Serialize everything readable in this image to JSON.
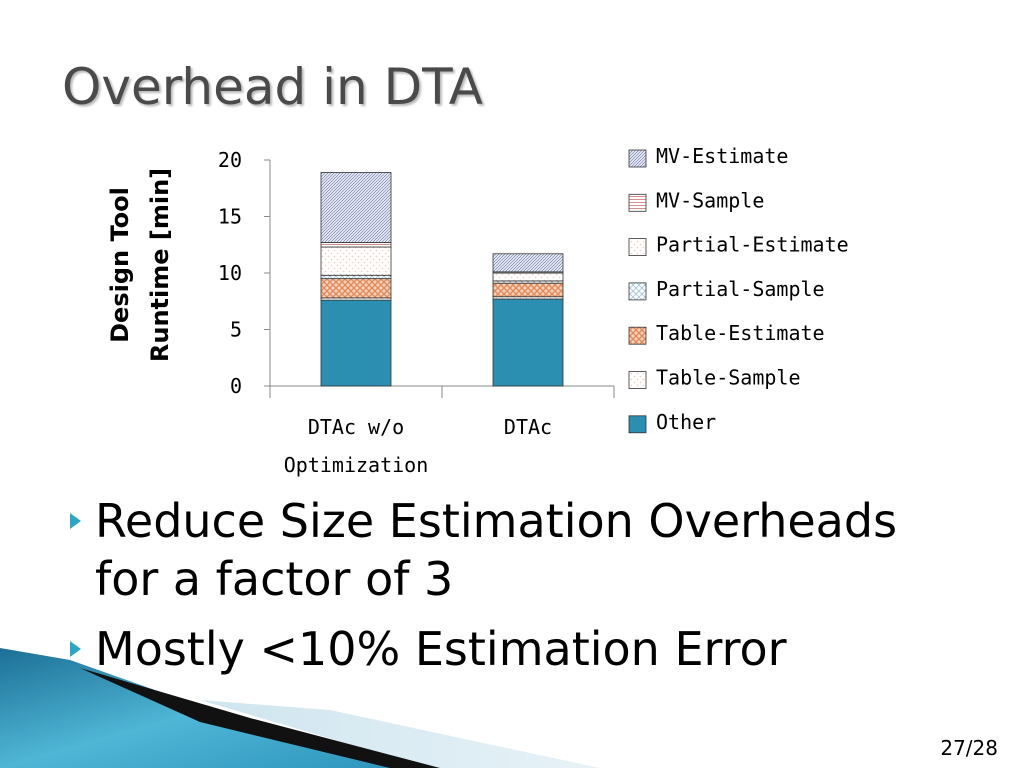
{
  "slide": {
    "title": "Overhead in DTA",
    "bullets": [
      "Reduce Size Estimation Overheads for a factor of 3",
      "Mostly <10% Estimation Error"
    ],
    "page_number": "27/28"
  },
  "colors": {
    "accent": "#2a8fb0",
    "title": "#4a4a4a",
    "bullet_marker": "#2aa7c8"
  },
  "chart_data": {
    "type": "bar",
    "stacked": true,
    "ylabel": "Design Tool Runtime [min]",
    "ylabel_lines": [
      "Design Tool",
      "Runtime [min]"
    ],
    "xlabel": "",
    "ylim": [
      0,
      20
    ],
    "yticks": [
      0,
      5,
      10,
      15,
      20
    ],
    "categories": [
      "DTAc w/o Optimization",
      "DTAc"
    ],
    "category_lines": [
      [
        "DTAc w/o",
        "Optimization"
      ],
      [
        "DTAc"
      ]
    ],
    "legend_position": "right",
    "grid": false,
    "series": [
      {
        "name": "Other",
        "values": [
          7.6,
          7.7
        ],
        "fill": "#2a8fb0",
        "pattern": "solid"
      },
      {
        "name": "Table-Sample",
        "values": [
          0.2,
          0.2
        ],
        "fill": "#f3c9b8",
        "pattern": "dots"
      },
      {
        "name": "Table-Estimate",
        "values": [
          1.7,
          1.2
        ],
        "fill": "#e38a5a",
        "pattern": "grid"
      },
      {
        "name": "Partial-Sample",
        "values": [
          0.3,
          0.2
        ],
        "fill": "#9ec3da",
        "pattern": "diag"
      },
      {
        "name": "Partial-Estimate",
        "values": [
          2.5,
          0.7
        ],
        "fill": "#f3c9b8",
        "pattern": "dots"
      },
      {
        "name": "MV-Sample",
        "values": [
          0.4,
          0.1
        ],
        "fill": "#c86a6a",
        "pattern": "hlines"
      },
      {
        "name": "MV-Estimate",
        "values": [
          6.2,
          1.6
        ],
        "fill": "#9aa4c8",
        "pattern": "cross"
      }
    ],
    "legend_order": [
      "MV-Estimate",
      "MV-Sample",
      "Partial-Estimate",
      "Partial-Sample",
      "Table-Estimate",
      "Table-Sample",
      "Other"
    ]
  }
}
